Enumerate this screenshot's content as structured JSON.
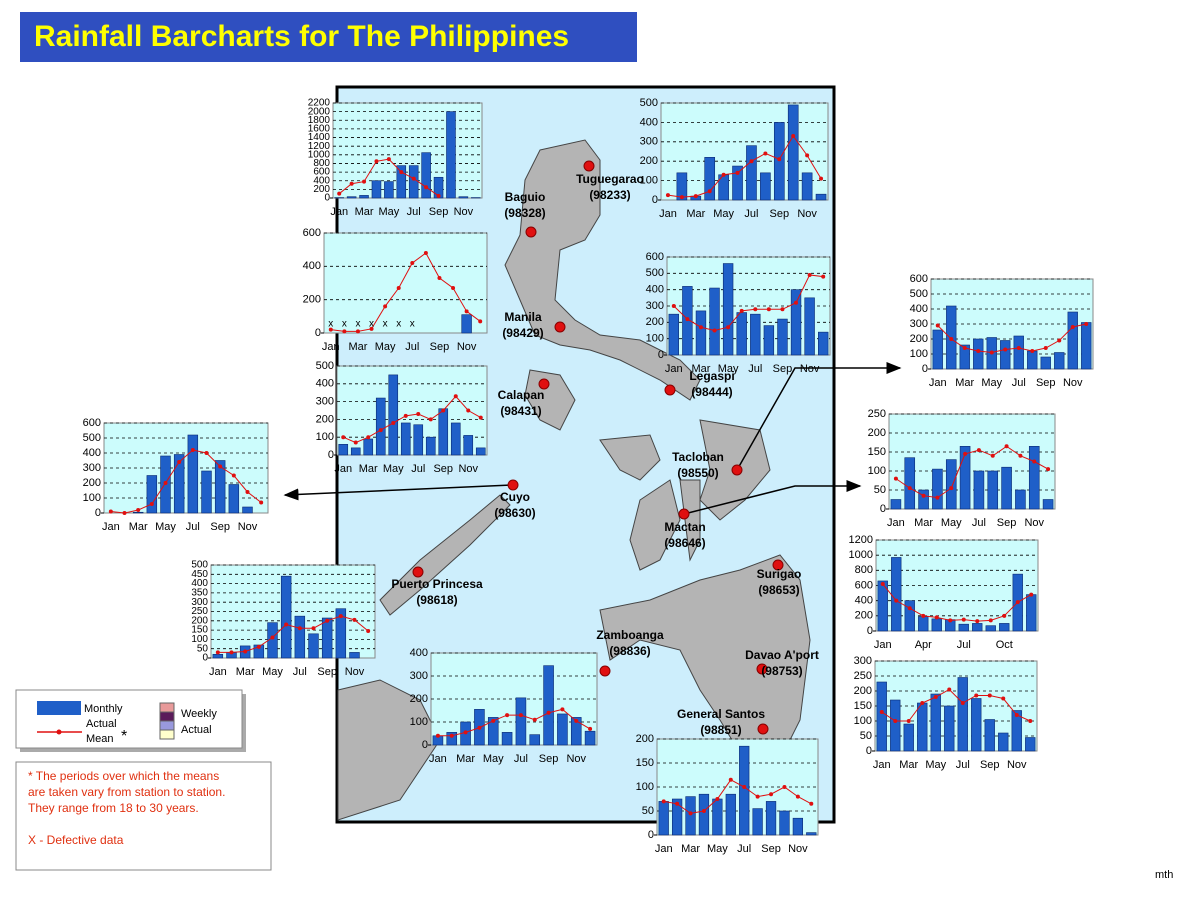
{
  "title": "Rainfall Barcharts for The Philippines",
  "stations": [
    {
      "name": "Tuguegarao",
      "code": "(98233)"
    },
    {
      "name": "Baguio",
      "code": "(98328)"
    },
    {
      "name": "Manila",
      "code": "(98429)"
    },
    {
      "name": "Calapan",
      "code": "(98431)"
    },
    {
      "name": "Legaspi",
      "code": "(98444)"
    },
    {
      "name": "Tacloban",
      "code": "(98550)"
    },
    {
      "name": "Cuyo",
      "code": "(98630)"
    },
    {
      "name": "Mactan",
      "code": "(98646)"
    },
    {
      "name": "Puerto Princesa",
      "code": "(98618)"
    },
    {
      "name": "Surigao",
      "code": "(98653)"
    },
    {
      "name": "Zamboanga",
      "code": "(98836)"
    },
    {
      "name": "Davao A'port",
      "code": "(98753)"
    },
    {
      "name": "General Santos",
      "code": "(98851)"
    }
  ],
  "legend": {
    "monthly": "Monthly",
    "actual": "Actual",
    "mean": "Mean",
    "asterisk": "*",
    "weekly": "Weekly",
    "weekly_actual": "Actual"
  },
  "notes": [
    "* The periods over which the means",
    "are taken vary from station to station.",
    "They range from 18 to 30 years.",
    "X - Defective data"
  ],
  "credit": "mth",
  "chart_data": [
    {
      "type": "bar",
      "categories": [
        "Jan",
        null,
        "Mar",
        null,
        "May",
        null,
        "Jul",
        null,
        "Sep",
        null,
        "Nov",
        null
      ],
      "series": [
        {
          "color": "#1f5fc8",
          "values": [
            10,
            30,
            60,
            400,
            380,
            750,
            750,
            1050,
            480,
            2000,
            30,
            10
          ]
        },
        {
          "type": "line",
          "color": "#e01010",
          "values": [
            100,
            330,
            380,
            850,
            900,
            600,
            450,
            250,
            50,
            null,
            null,
            null
          ]
        }
      ],
      "ylim": [
        0,
        2200
      ],
      "yticks": [
        0,
        200,
        400,
        600,
        800,
        1000,
        1200,
        1400,
        1600,
        1800,
        2000,
        2200
      ],
      "grid": true
    },
    {
      "type": "bar",
      "categories": [
        "Jan",
        null,
        "Mar",
        null,
        "May",
        null,
        "Jul",
        null,
        "Sep",
        null,
        "Nov",
        null
      ],
      "series": [
        {
          "color": "#1f5fc8",
          "values": [
            0,
            140,
            20,
            220,
            130,
            175,
            280,
            140,
            400,
            490,
            140,
            30
          ]
        },
        {
          "type": "line",
          "color": "#e01010",
          "values": [
            25,
            15,
            20,
            45,
            130,
            140,
            200,
            240,
            210,
            330,
            230,
            110
          ]
        }
      ],
      "ylim": [
        0,
        500
      ],
      "yticks": [
        0,
        100,
        200,
        300,
        400,
        500
      ],
      "grid": true
    },
    {
      "type": "bar",
      "categories": [
        "Jan",
        null,
        "Mar",
        null,
        "May",
        null,
        "Jul",
        null,
        "Sep",
        null,
        "Nov",
        null
      ],
      "series": [
        {
          "color": "#1f5fc8",
          "values": [
            null,
            null,
            null,
            null,
            null,
            null,
            null,
            0,
            0,
            0,
            110,
            0
          ]
        },
        {
          "type": "line",
          "color": "#e01010",
          "values": [
            20,
            10,
            10,
            25,
            160,
            270,
            420,
            480,
            330,
            270,
            130,
            70
          ]
        }
      ],
      "defective_mark": "x",
      "defective": [
        0,
        1,
        2,
        3,
        4,
        5,
        6
      ],
      "ylim": [
        0,
        600
      ],
      "yticks": [
        0,
        200,
        400,
        600
      ],
      "grid": true
    },
    {
      "type": "bar",
      "categories": [
        "Jan",
        null,
        "Mar",
        null,
        "May",
        null,
        "Jul",
        null,
        "Sep",
        null,
        "Nov",
        null
      ],
      "series": [
        {
          "color": "#1f5fc8",
          "values": [
            250,
            420,
            270,
            410,
            560,
            260,
            250,
            180,
            220,
            400,
            350,
            140
          ]
        },
        {
          "type": "line",
          "color": "#e01010",
          "values": [
            300,
            220,
            170,
            150,
            170,
            270,
            280,
            280,
            280,
            320,
            490,
            480
          ]
        }
      ],
      "ylim": [
        0,
        600
      ],
      "yticks": [
        0,
        100,
        200,
        300,
        400,
        500,
        600
      ],
      "grid": true
    },
    {
      "type": "bar",
      "categories": [
        "Jan",
        null,
        "Mar",
        null,
        "May",
        null,
        "Jul",
        null,
        "Sep",
        null,
        "Nov",
        null
      ],
      "series": [
        {
          "color": "#1f5fc8",
          "values": [
            60,
            40,
            90,
            320,
            450,
            180,
            170,
            100,
            260,
            180,
            110,
            40
          ]
        },
        {
          "type": "line",
          "color": "#e01010",
          "values": [
            100,
            70,
            100,
            140,
            180,
            220,
            230,
            200,
            250,
            330,
            250,
            210
          ]
        }
      ],
      "ylim": [
        0,
        500
      ],
      "yticks": [
        0,
        100,
        200,
        300,
        400,
        500
      ],
      "grid": true
    },
    {
      "type": "bar",
      "categories": [
        "Jan",
        null,
        "Mar",
        null,
        "May",
        null,
        "Jul",
        null,
        "Sep",
        null,
        "Nov",
        null
      ],
      "series": [
        {
          "color": "#1f5fc8",
          "values": [
            0,
            0,
            5,
            250,
            380,
            390,
            520,
            280,
            350,
            190,
            40,
            0
          ]
        },
        {
          "type": "line",
          "color": "#e01010",
          "values": [
            10,
            0,
            20,
            60,
            200,
            340,
            420,
            400,
            310,
            250,
            140,
            70
          ]
        }
      ],
      "ylim": [
        0,
        600
      ],
      "yticks": [
        0,
        100,
        200,
        300,
        400,
        500,
        600
      ],
      "grid": true
    },
    {
      "type": "bar",
      "categories": [
        "Jan",
        null,
        "Mar",
        null,
        "May",
        null,
        "Jul",
        null,
        "Sep",
        null,
        "Nov",
        null
      ],
      "series": [
        {
          "color": "#1f5fc8",
          "values": [
            20,
            30,
            65,
            70,
            190,
            440,
            225,
            130,
            215,
            265,
            30,
            0
          ]
        },
        {
          "type": "line",
          "color": "#e01010",
          "values": [
            30,
            30,
            35,
            60,
            110,
            180,
            160,
            160,
            200,
            225,
            205,
            145
          ]
        }
      ],
      "ylim": [
        0,
        500
      ],
      "yticks": [
        0,
        50,
        100,
        150,
        200,
        250,
        300,
        350,
        400,
        450,
        500
      ],
      "grid": true
    },
    {
      "type": "bar",
      "categories": [
        "Jan",
        null,
        "Mar",
        null,
        "May",
        null,
        "Jul",
        null,
        "Sep",
        null,
        "Nov",
        null
      ],
      "series": [
        {
          "color": "#1f5fc8",
          "values": [
            40,
            55,
            100,
            155,
            120,
            55,
            205,
            45,
            345,
            135,
            120,
            60
          ]
        },
        {
          "type": "line",
          "color": "#e01010",
          "values": [
            40,
            40,
            55,
            75,
            105,
            130,
            130,
            110,
            140,
            155,
            105,
            70
          ]
        }
      ],
      "ylim": [
        0,
        400
      ],
      "yticks": [
        0,
        100,
        200,
        300,
        400
      ],
      "grid": true
    },
    {
      "type": "bar",
      "categories": [
        "Jan",
        null,
        "Mar",
        null,
        "May",
        null,
        "Jul",
        null,
        "Sep",
        null,
        "Nov",
        null
      ],
      "series": [
        {
          "color": "#1f5fc8",
          "values": [
            70,
            75,
            80,
            85,
            75,
            85,
            185,
            55,
            70,
            50,
            35,
            5
          ]
        },
        {
          "type": "line",
          "color": "#e01010",
          "values": [
            70,
            65,
            45,
            50,
            75,
            115,
            100,
            80,
            85,
            100,
            80,
            65
          ]
        }
      ],
      "ylim": [
        0,
        200
      ],
      "yticks": [
        0,
        50,
        100,
        150,
        200
      ],
      "grid": true
    },
    {
      "type": "bar",
      "categories": [
        "Jan",
        null,
        "Mar",
        null,
        "May",
        null,
        "Jul",
        null,
        "Sep",
        null,
        "Nov",
        null
      ],
      "series": [
        {
          "color": "#1f5fc8",
          "values": [
            260,
            420,
            160,
            200,
            210,
            190,
            220,
            120,
            80,
            110,
            380,
            310
          ]
        },
        {
          "type": "line",
          "color": "#e01010",
          "values": [
            290,
            200,
            140,
            120,
            110,
            130,
            140,
            120,
            140,
            190,
            280,
            300
          ]
        }
      ],
      "ylim": [
        0,
        600
      ],
      "yticks": [
        0,
        100,
        200,
        300,
        400,
        500,
        600
      ],
      "grid": true
    },
    {
      "type": "bar",
      "categories": [
        "Jan",
        null,
        "Mar",
        null,
        "May",
        null,
        "Jul",
        null,
        "Sep",
        null,
        "Nov",
        null
      ],
      "series": [
        {
          "color": "#1f5fc8",
          "values": [
            25,
            135,
            50,
            105,
            130,
            165,
            100,
            100,
            110,
            50,
            165,
            25
          ]
        },
        {
          "type": "line",
          "color": "#e01010",
          "values": [
            80,
            55,
            35,
            30,
            55,
            145,
            155,
            140,
            165,
            140,
            125,
            105
          ]
        }
      ],
      "ylim": [
        0,
        250
      ],
      "yticks": [
        0,
        50,
        100,
        150,
        200,
        250
      ],
      "grid": true
    },
    {
      "type": "bar",
      "categories": [
        "Jan",
        null,
        null,
        "Apr",
        null,
        null,
        "Jul",
        null,
        null,
        "Oct",
        null,
        null
      ],
      "series": [
        {
          "color": "#1f5fc8",
          "values": [
            660,
            970,
            400,
            190,
            160,
            150,
            90,
            100,
            70,
            100,
            750,
            480
          ]
        },
        {
          "type": "line",
          "color": "#e01010",
          "values": [
            620,
            400,
            300,
            200,
            180,
            140,
            150,
            130,
            140,
            200,
            380,
            480
          ]
        }
      ],
      "ylim": [
        0,
        1200
      ],
      "yticks": [
        0,
        200,
        400,
        600,
        800,
        1000,
        1200
      ],
      "grid": true
    },
    {
      "type": "bar",
      "categories": [
        "Jan",
        null,
        "Mar",
        null,
        "May",
        null,
        "Jul",
        null,
        "Sep",
        null,
        "Nov",
        null
      ],
      "series": [
        {
          "color": "#1f5fc8",
          "values": [
            230,
            170,
            90,
            160,
            190,
            150,
            245,
            175,
            105,
            60,
            135,
            45
          ]
        },
        {
          "type": "line",
          "color": "#e01010",
          "values": [
            130,
            100,
            100,
            160,
            180,
            205,
            160,
            185,
            185,
            175,
            120,
            100
          ]
        }
      ],
      "ylim": [
        0,
        300
      ],
      "yticks": [
        0,
        50,
        100,
        150,
        200,
        250,
        300
      ],
      "grid": true
    }
  ]
}
